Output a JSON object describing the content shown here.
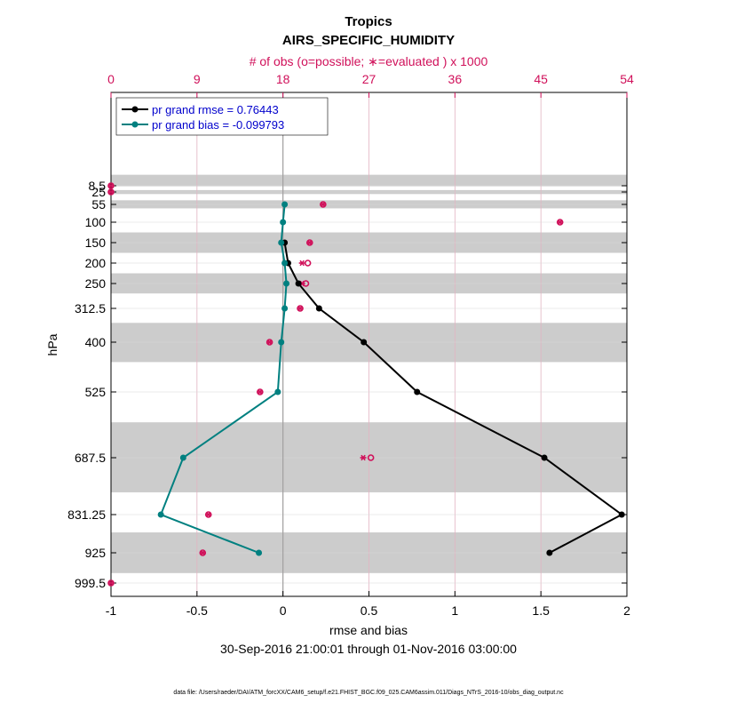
{
  "title": "Tropics",
  "subtitle": "AIRS_SPECIFIC_HUMIDITY",
  "top_axis_label": "# of obs (o=possible; ∗=evaluated ) x 1000",
  "xlabel": "rmse and bias",
  "ylabel": "hPa",
  "date_range": "30-Sep-2016 21:00:01 through 01-Nov-2016 03:00:00",
  "footer": "data file: /Users/raeder/DAI/ATM_forcXX/CAM6_setup/f.e21.FHIST_BGC.f09_025.CAM6assim.011/Diags_NTrS_2016-10/obs_diag_output.nc",
  "colors": {
    "rmse": "#000000",
    "bias": "#008080",
    "obs": "#d0105a",
    "band": "#cccccc",
    "legend_text": "#0000cc"
  },
  "chart_data": {
    "type": "line",
    "xlim": [
      -1,
      2
    ],
    "xticks": [
      "-1",
      "-0.5",
      "0",
      "0.5",
      "1",
      "1.5",
      "2"
    ],
    "xtick_values": [
      -1,
      -0.5,
      0,
      0.5,
      1,
      1.5,
      2
    ],
    "top_xlim": [
      0,
      54
    ],
    "top_xticks": [
      "0",
      "9",
      "18",
      "27",
      "36",
      "45",
      "54"
    ],
    "top_xtick_values": [
      0,
      9,
      18,
      27,
      36,
      45,
      54
    ],
    "y_axis": "pressure (decreasing upward)",
    "levels": [
      8.5,
      25,
      55,
      100,
      150,
      200,
      250,
      312.5,
      400,
      525,
      687.5,
      831.25,
      925,
      999.5
    ],
    "level_labels": [
      "8.5",
      "25",
      "55",
      "100",
      "150",
      "200",
      "250",
      "312.5",
      "400",
      "525",
      "687.5",
      "831.25",
      "925",
      "999.5"
    ],
    "bands": [
      [
        7.5,
        10
      ],
      [
        20,
        30
      ],
      [
        45,
        65
      ],
      [
        125,
        175
      ],
      [
        225,
        275
      ],
      [
        350,
        450
      ],
      [
        600,
        775
      ],
      [
        875,
        975
      ]
    ],
    "series": [
      {
        "name": "pr grand rmse = 0.76443",
        "levels": [
          150,
          200,
          250,
          312.5,
          400,
          525,
          687.5,
          831.25,
          925
        ],
        "values": [
          0.01,
          0.03,
          0.09,
          0.21,
          0.47,
          0.78,
          1.52,
          1.97,
          1.55
        ]
      },
      {
        "name": "pr grand bias = -0.099793",
        "levels": [
          55,
          100,
          150,
          200,
          250,
          312.5,
          400,
          525,
          687.5,
          831.25,
          925
        ],
        "values": [
          0.01,
          0.0,
          -0.01,
          0.01,
          0.02,
          0.01,
          -0.01,
          -0.03,
          -0.58,
          -0.71,
          -0.14
        ]
      }
    ],
    "obs_possible": [
      {
        "level": 8.5,
        "value": 0
      },
      {
        "level": 25,
        "value": 0
      },
      {
        "level": 55,
        "value": 22.2
      },
      {
        "level": 100,
        "value": 47
      },
      {
        "level": 150,
        "value": 20.8
      },
      {
        "level": 200,
        "value": 20.6
      },
      {
        "level": 250,
        "value": 20.4
      },
      {
        "level": 312.5,
        "value": 19.8
      },
      {
        "level": 400,
        "value": 16.6
      },
      {
        "level": 525,
        "value": 15.6
      },
      {
        "level": 687.5,
        "value": 27.2
      },
      {
        "level": 831.25,
        "value": 10.2
      },
      {
        "level": 925,
        "value": 9.6
      },
      {
        "level": 999.5,
        "value": 0
      }
    ],
    "obs_evaluated": [
      {
        "level": 8.5,
        "value": 0
      },
      {
        "level": 25,
        "value": 0
      },
      {
        "level": 55,
        "value": 22.2
      },
      {
        "level": 100,
        "value": 47
      },
      {
        "level": 150,
        "value": 20.8
      },
      {
        "level": 200,
        "value": 20.0
      },
      {
        "level": 250,
        "value": 20.0
      },
      {
        "level": 312.5,
        "value": 19.8
      },
      {
        "level": 400,
        "value": 16.6
      },
      {
        "level": 525,
        "value": 15.6
      },
      {
        "level": 687.5,
        "value": 26.4
      },
      {
        "level": 831.25,
        "value": 10.2
      },
      {
        "level": 925,
        "value": 9.6
      },
      {
        "level": 999.5,
        "value": 0
      }
    ]
  }
}
